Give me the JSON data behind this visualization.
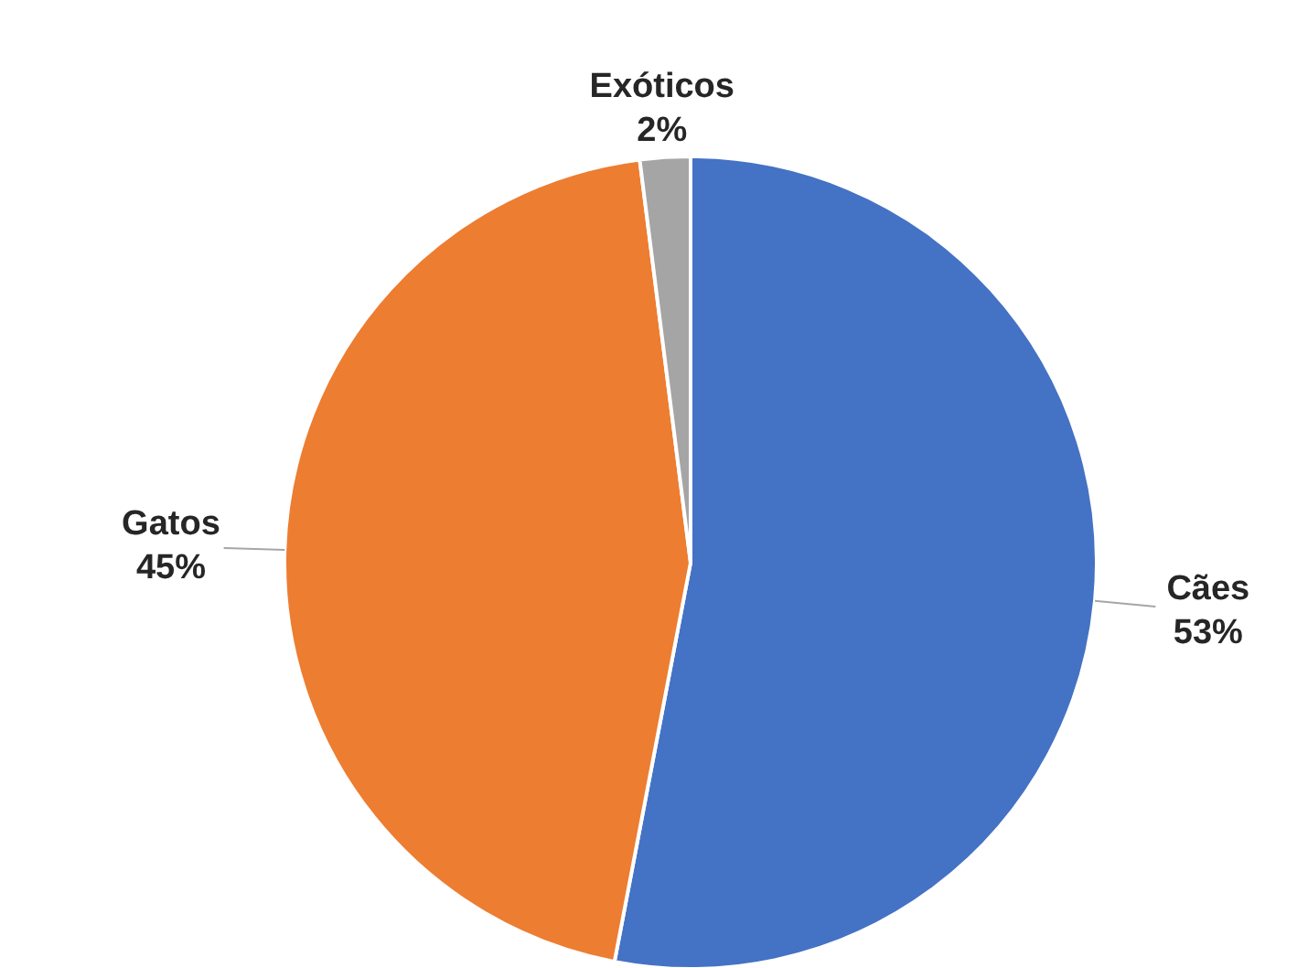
{
  "chart_data": {
    "type": "pie",
    "categories": [
      "Cães",
      "Gatos",
      "Exóticos"
    ],
    "values": [
      53,
      45,
      2
    ],
    "colors": [
      "#4472c4",
      "#ed7d31",
      "#a5a5a5"
    ],
    "value_labels": [
      "53%",
      "45%",
      "2%"
    ]
  }
}
